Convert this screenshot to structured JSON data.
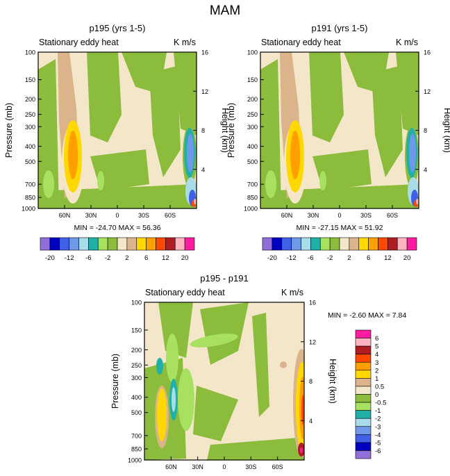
{
  "figure": {
    "title": "MAM"
  },
  "colors": {
    "abs_scale": [
      "#9070d8",
      "#0000c0",
      "#4060e8",
      "#7098e8",
      "#a8dce8",
      "#20b0a8",
      "#a8e060",
      "#8cbc3c",
      "#f4e6c8",
      "#dcb48c",
      "#ffd800",
      "#ffa000",
      "#ff4800",
      "#b01c20",
      "#ffb4c0",
      "#ff1ca0"
    ],
    "diff_scale": [
      "#9070d8",
      "#0000c0",
      "#4060e8",
      "#7098e8",
      "#a8dce8",
      "#20b0a8",
      "#a8e060",
      "#8cbc3c",
      "#f4e6c8",
      "#dcb48c",
      "#ffd800",
      "#ffa000",
      "#ff4800",
      "#b01c20",
      "#ffb4c0",
      "#ff1ca0"
    ]
  },
  "chart_data": [
    {
      "type": "heatmap",
      "title": "p195 (yrs 1-5)",
      "subtitle": "Stationary eddy heat",
      "units": "K m/s",
      "ylabel": "Pressure (mb)",
      "ylabel_right": "Height (km)",
      "xlabel": "",
      "x_ticks": [
        "60N",
        "30N",
        "0",
        "30S",
        "60S"
      ],
      "x_tick_values": [
        60,
        30,
        0,
        -30,
        -60
      ],
      "xlim": [
        90,
        -90
      ],
      "y_ticks": [
        "100",
        "150",
        "200",
        "250",
        "300",
        "400",
        "500",
        "700",
        "850",
        "1000"
      ],
      "y_tick_values": [
        100,
        150,
        200,
        250,
        300,
        400,
        500,
        700,
        850,
        1000
      ],
      "ylim": [
        1000,
        100
      ],
      "height_ticks": [
        "16",
        "12",
        "8",
        "4"
      ],
      "height_values": [
        16,
        12,
        8,
        4
      ],
      "min_label": "MIN = -24.70",
      "max_label": "MAX =  56.36",
      "min": -24.7,
      "max": 56.36,
      "colorbar_orientation": "horizontal",
      "colorbar_labels": [
        "-20",
        "-12",
        "-6",
        "-2",
        "2",
        "6",
        "12",
        "20"
      ],
      "levels": [
        -20,
        -16,
        -12,
        -8,
        -6,
        -4,
        -2,
        0,
        2,
        4,
        6,
        8,
        12,
        16,
        20
      ]
    },
    {
      "type": "heatmap",
      "title": "p191 (yrs 1-5)",
      "subtitle": "Stationary eddy heat",
      "units": "K m/s",
      "ylabel": "Pressure (mb)",
      "ylabel_right": "Height (km)",
      "xlabel": "",
      "x_ticks": [
        "60N",
        "30N",
        "0",
        "30S",
        "60S"
      ],
      "x_tick_values": [
        60,
        30,
        0,
        -30,
        -60
      ],
      "xlim": [
        90,
        -90
      ],
      "y_ticks": [
        "100",
        "150",
        "200",
        "250",
        "300",
        "400",
        "500",
        "700",
        "850",
        "1000"
      ],
      "y_tick_values": [
        100,
        150,
        200,
        250,
        300,
        400,
        500,
        700,
        850,
        1000
      ],
      "ylim": [
        1000,
        100
      ],
      "height_ticks": [
        "16",
        "12",
        "8",
        "4"
      ],
      "height_values": [
        16,
        12,
        8,
        4
      ],
      "min_label": "MIN = -27.15",
      "max_label": "MAX =  51.92",
      "min": -27.15,
      "max": 51.92,
      "colorbar_orientation": "horizontal",
      "colorbar_labels": [
        "-20",
        "-12",
        "-6",
        "-2",
        "2",
        "6",
        "12",
        "20"
      ],
      "levels": [
        -20,
        -16,
        -12,
        -8,
        -6,
        -4,
        -2,
        0,
        2,
        4,
        6,
        8,
        12,
        16,
        20
      ]
    },
    {
      "type": "heatmap",
      "title": "p195 - p191",
      "subtitle": "Stationary eddy heat",
      "units": "K m/s",
      "ylabel": "Pressure (mb)",
      "ylabel_right": "Height (km)",
      "xlabel": "",
      "x_ticks": [
        "60N",
        "30N",
        "0",
        "30S",
        "60S"
      ],
      "x_tick_values": [
        60,
        30,
        0,
        -30,
        -60
      ],
      "xlim": [
        90,
        -90
      ],
      "y_ticks": [
        "100",
        "150",
        "200",
        "250",
        "300",
        "400",
        "500",
        "700",
        "850",
        "1000"
      ],
      "y_tick_values": [
        100,
        150,
        200,
        250,
        300,
        400,
        500,
        700,
        850,
        1000
      ],
      "ylim": [
        1000,
        100
      ],
      "height_ticks": [
        "16",
        "12",
        "8",
        "4"
      ],
      "height_values": [
        16,
        12,
        8,
        4
      ],
      "min_label": "MIN =  -2.60",
      "max_label": "MAX =   7.84",
      "min": -2.6,
      "max": 7.84,
      "colorbar_orientation": "vertical",
      "colorbar_labels": [
        "6",
        "5",
        "4",
        "3",
        "2",
        "1",
        "0.5",
        "0",
        "-0.5",
        "-1",
        "-2",
        "-3",
        "-4",
        "-5",
        "-6"
      ],
      "levels": [
        -6,
        -5,
        -4,
        -3,
        -2,
        -1,
        -0.5,
        0,
        0.5,
        1,
        2,
        3,
        4,
        5,
        6
      ]
    }
  ]
}
